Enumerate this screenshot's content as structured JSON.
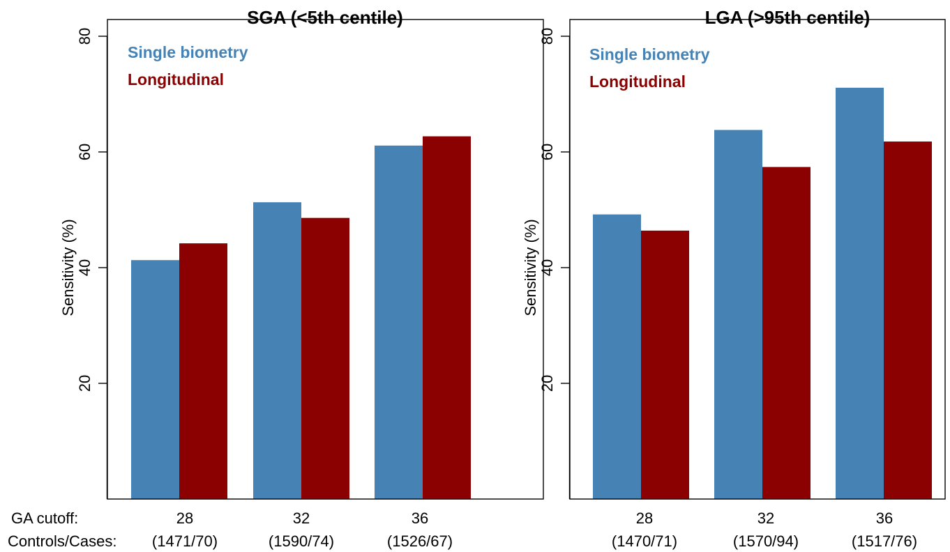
{
  "figure": {
    "row_labels": {
      "ga_cutoff": "GA cutoff:",
      "controls_cases": "Controls/Cases:"
    }
  },
  "colors": {
    "single_biometry": "#4682b4",
    "longitudinal": "#8b0000"
  },
  "chart_data": [
    {
      "type": "bar",
      "title": "SGA (<5th centile)",
      "xlabel": "",
      "ylabel": "Sensitivity (%)",
      "ylim": [
        0,
        80
      ],
      "yticks": [
        20,
        40,
        60,
        80
      ],
      "grid": false,
      "legend_position": "top-left",
      "categories": [
        "28",
        "32",
        "36"
      ],
      "category_counts": [
        "(1471/70)",
        "(1590/74)",
        "(1526/67)"
      ],
      "series": [
        {
          "name": "Single biometry",
          "values": [
            41.3,
            51.3,
            61.1
          ]
        },
        {
          "name": "Longitudinal",
          "values": [
            44.2,
            48.6,
            62.7
          ]
        }
      ]
    },
    {
      "type": "bar",
      "title": "LGA (>95th centile)",
      "xlabel": "",
      "ylabel": "Sensitivity (%)",
      "ylim": [
        0,
        80
      ],
      "yticks": [
        20,
        40,
        60,
        80
      ],
      "grid": false,
      "legend_position": "top-left",
      "categories": [
        "28",
        "32",
        "36"
      ],
      "category_counts": [
        "(1470/71)",
        "(1570/94)",
        "(1517/76)"
      ],
      "series": [
        {
          "name": "Single biometry",
          "values": [
            49.2,
            63.8,
            71.1
          ]
        },
        {
          "name": "Longitudinal",
          "values": [
            46.4,
            57.4,
            61.8
          ]
        }
      ]
    }
  ]
}
